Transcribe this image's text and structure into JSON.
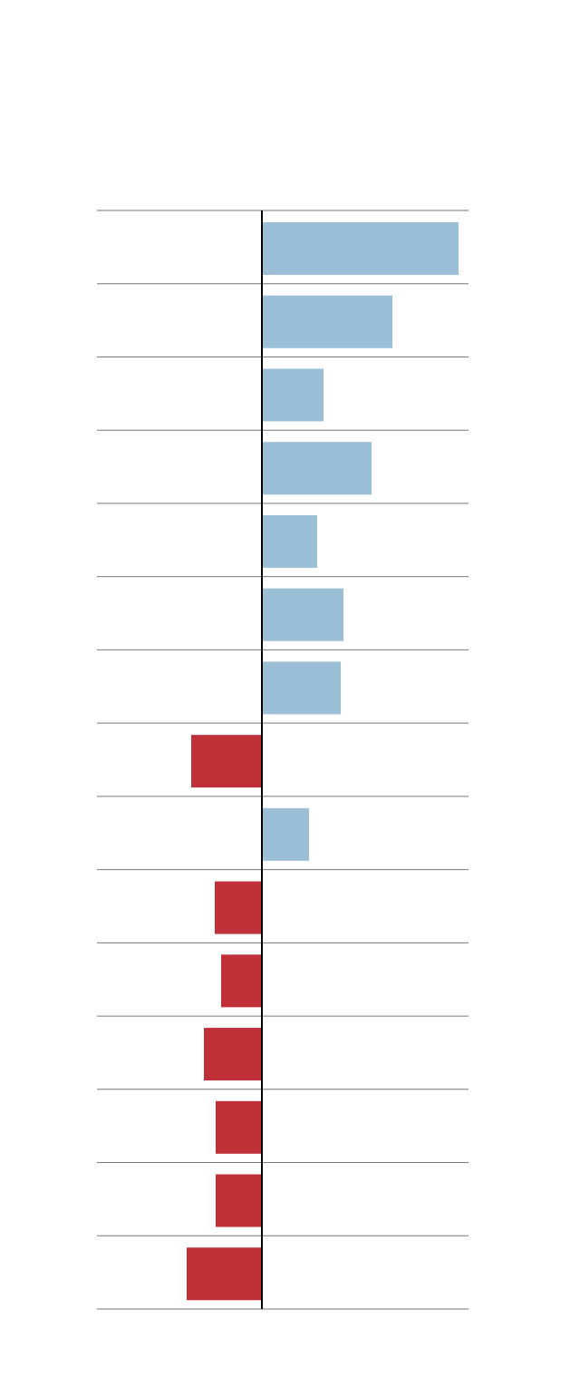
{
  "chart_data": {
    "type": "diverging-bar",
    "categories": [
      null,
      null,
      null,
      null,
      null,
      null,
      null,
      null,
      null,
      null,
      null,
      null,
      null,
      null,
      null
    ],
    "values": [
      217,
      144,
      68,
      121,
      61,
      90,
      87,
      -78,
      52,
      -52,
      -45,
      -64,
      -51,
      -51,
      -83
    ],
    "xlim": [
      -182,
      228
    ],
    "positive_color": "#9bbfd6",
    "negative_color": "#c13038"
  }
}
